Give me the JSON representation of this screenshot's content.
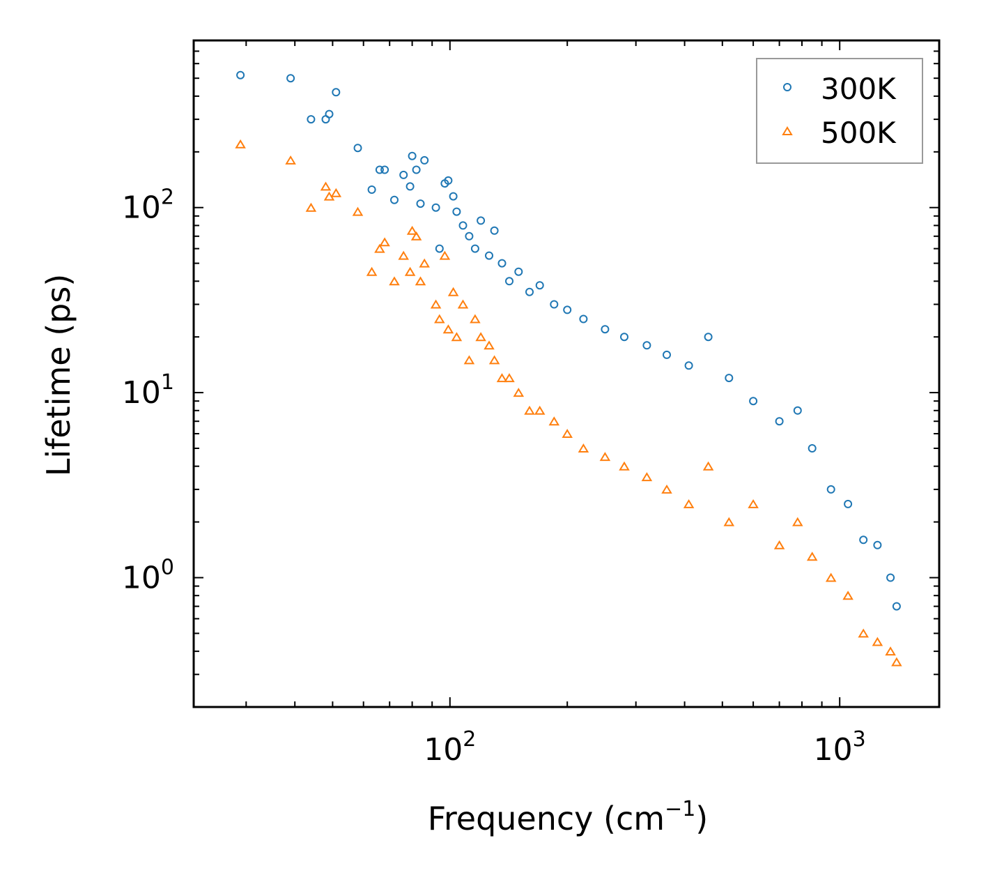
{
  "chart_data": {
    "type": "scatter",
    "xscale": "log",
    "yscale": "log",
    "xlabel": "Frequency (cm",
    "xlabel_sup": "−1",
    "xlabel_close": ")",
    "ylabel": "Lifetime (ps)",
    "xlim": [
      22,
      1800
    ],
    "ylim": [
      0.2,
      800
    ],
    "xticks": [
      {
        "value": 100,
        "base": "10",
        "exp": "2"
      },
      {
        "value": 1000,
        "base": "10",
        "exp": "3"
      }
    ],
    "yticks": [
      {
        "value": 1,
        "base": "10",
        "exp": "0"
      },
      {
        "value": 10,
        "base": "10",
        "exp": "1"
      },
      {
        "value": 100,
        "base": "10",
        "exp": "2"
      }
    ],
    "legend_position": "top-right",
    "series": [
      {
        "name": "300K",
        "color": "#1f77b4",
        "marker": "circle-open",
        "x": [
          29,
          39,
          44,
          48,
          49,
          51,
          58,
          63,
          66,
          68,
          72,
          76,
          79,
          80,
          82,
          84,
          86,
          92,
          94,
          97,
          99,
          102,
          104,
          108,
          112,
          116,
          120,
          126,
          130,
          136,
          142,
          150,
          160,
          170,
          185,
          200,
          220,
          250,
          280,
          320,
          360,
          410,
          460,
          520,
          600,
          700,
          780,
          850,
          950,
          1050,
          1150,
          1250,
          1350,
          1400
        ],
        "y": [
          520,
          500,
          300,
          300,
          320,
          420,
          210,
          125,
          160,
          160,
          110,
          150,
          130,
          190,
          160,
          105,
          180,
          100,
          60,
          135,
          140,
          115,
          95,
          80,
          70,
          60,
          85,
          55,
          75,
          50,
          40,
          45,
          35,
          38,
          30,
          28,
          25,
          22,
          20,
          18,
          16,
          14,
          20,
          12,
          9,
          7,
          8,
          5,
          3,
          2.5,
          1.6,
          1.5,
          1.0,
          0.7
        ]
      },
      {
        "name": "500K",
        "color": "#ff7f0e",
        "marker": "triangle-open",
        "x": [
          29,
          39,
          44,
          48,
          49,
          51,
          58,
          63,
          66,
          68,
          72,
          76,
          79,
          80,
          82,
          84,
          86,
          92,
          94,
          97,
          99,
          102,
          104,
          108,
          112,
          116,
          120,
          126,
          130,
          136,
          142,
          150,
          160,
          170,
          185,
          200,
          220,
          250,
          280,
          320,
          360,
          410,
          460,
          520,
          600,
          700,
          780,
          850,
          950,
          1050,
          1150,
          1250,
          1350,
          1400
        ],
        "y": [
          220,
          180,
          100,
          130,
          115,
          120,
          95,
          45,
          60,
          65,
          40,
          55,
          45,
          75,
          70,
          40,
          50,
          30,
          25,
          55,
          22,
          35,
          20,
          30,
          15,
          25,
          20,
          18,
          15,
          12,
          12,
          10,
          8,
          8,
          7,
          6,
          5,
          4.5,
          4,
          3.5,
          3,
          2.5,
          4,
          2,
          2.5,
          1.5,
          2,
          1.3,
          1,
          0.8,
          0.5,
          0.45,
          0.4,
          0.35
        ]
      }
    ]
  }
}
